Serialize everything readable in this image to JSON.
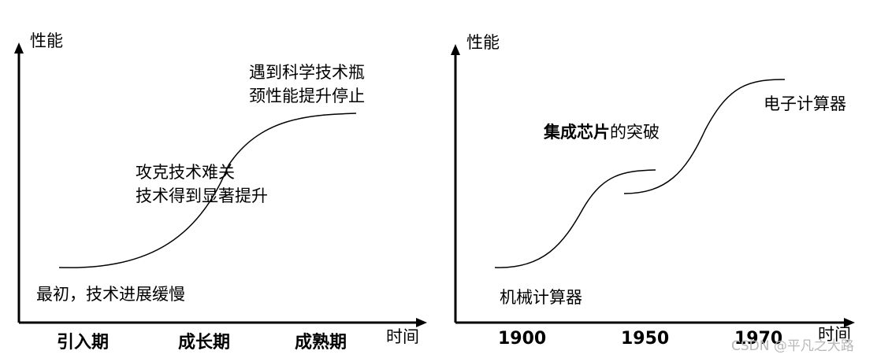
{
  "left_panel": {
    "y_axis_label": "性能",
    "x_axis_label": "时间",
    "stages": [
      "引入期",
      "成长期",
      "成熟期"
    ],
    "annotations": {
      "start": "最初，技术进展缓慢",
      "middle_line1": "攻克技术难关",
      "middle_line2": "技术得到显著提升",
      "end_line1": "遇到科学技术瓶",
      "end_line2": "颈性能提升停止"
    }
  },
  "right_panel": {
    "y_axis_label": "性能",
    "x_axis_label": "时间",
    "years": [
      "1900",
      "1950",
      "1970"
    ],
    "annotations": {
      "mechanical": "机械计算器",
      "chip_bold": "集成芯片",
      "chip_rest": "的突破",
      "electronic": "电子计算器"
    }
  },
  "watermark": "CSDN @平凡之大路"
}
